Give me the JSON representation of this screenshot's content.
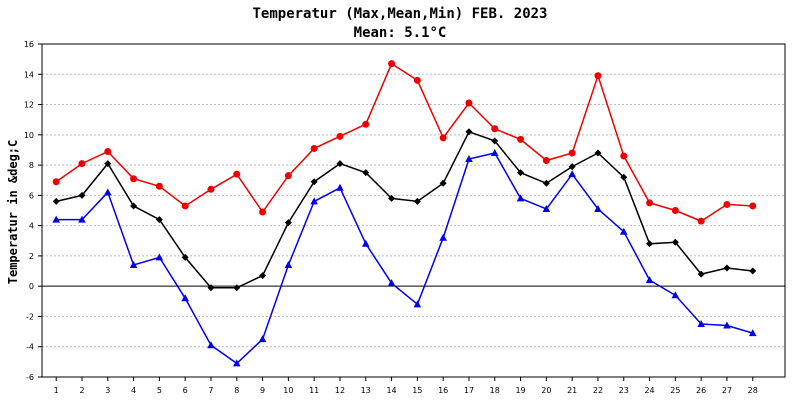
{
  "chart_data": {
    "type": "line",
    "title": "Temperatur (Max,Mean,Min) FEB. 2023",
    "subtitle": "Mean: 5.1°C",
    "ylabel": "Temperatur in &deg;C",
    "xlabel": "",
    "ylim": [
      -6,
      16
    ],
    "yticks": [
      -6,
      -4,
      -2,
      0,
      2,
      4,
      6,
      8,
      10,
      12,
      14,
      16
    ],
    "grid": true,
    "x": [
      1,
      2,
      3,
      4,
      5,
      6,
      7,
      8,
      9,
      10,
      11,
      12,
      13,
      14,
      15,
      16,
      17,
      18,
      19,
      20,
      21,
      22,
      23,
      24,
      25,
      26,
      27,
      28
    ],
    "series": [
      {
        "color": "#ee0000",
        "marker": "circle",
        "values": [
          6.9,
          8.1,
          8.9,
          7.1,
          6.6,
          5.3,
          6.4,
          7.4,
          4.9,
          7.3,
          9.1,
          9.9,
          10.7,
          14.7,
          13.6,
          9.8,
          12.1,
          10.4,
          9.7,
          8.3,
          8.8,
          13.9,
          8.6,
          5.5,
          5.0,
          4.3,
          5.4,
          5.3
        ]
      },
      {
        "color": "#000000",
        "marker": "diamond",
        "values": [
          5.6,
          6.0,
          8.1,
          5.3,
          4.4,
          1.9,
          -0.1,
          -0.1,
          0.7,
          4.2,
          6.9,
          8.1,
          7.5,
          5.8,
          5.6,
          6.8,
          10.2,
          9.6,
          7.5,
          6.8,
          7.9,
          8.8,
          7.2,
          2.8,
          2.9,
          0.8,
          1.2,
          1.0
        ]
      },
      {
        "color": "#0000ee",
        "marker": "triangle",
        "values": [
          4.4,
          4.4,
          6.2,
          1.4,
          1.9,
          -0.8,
          -3.9,
          -5.1,
          -3.5,
          1.4,
          5.6,
          6.5,
          2.8,
          0.2,
          -1.2,
          3.2,
          8.4,
          8.8,
          5.8,
          5.1,
          7.4,
          5.1,
          3.6,
          0.4,
          -0.6,
          -2.5,
          -2.6,
          -3.1
        ]
      }
    ]
  }
}
